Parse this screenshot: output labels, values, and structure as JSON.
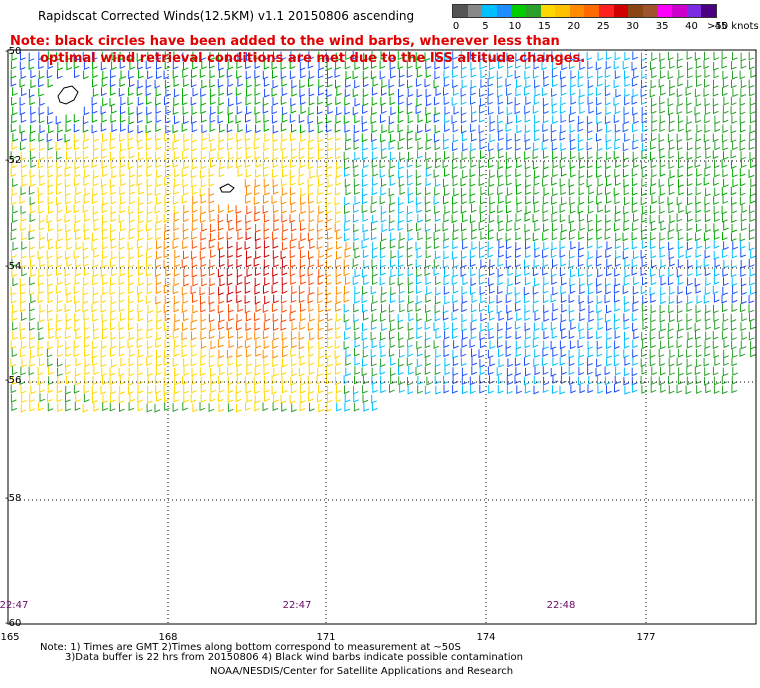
{
  "title": "Rapidscat Corrected Winds(12.5KM) v1.1 20150806 ascending",
  "note_line1": "Note: black circles have been added to the wind barbs, wherever less than",
  "note_line2": "optimal wind retrieval conditions are met due to the ISS altitude changes.",
  "legend": {
    "ticks": [
      "0",
      "5",
      "10",
      "15",
      "20",
      "25",
      "30",
      "35",
      "40",
      "45"
    ],
    "units": ">50 knots",
    "colors": [
      "#555555",
      "#888888",
      "#00bfff",
      "#1f8fff",
      "#00cc00",
      "#2aa02a",
      "#ffd700",
      "#ffc000",
      "#ff8c00",
      "#ff6a00",
      "#ff2020",
      "#d00000",
      "#8b4513",
      "#a0522d",
      "#ff00ff",
      "#cc00cc",
      "#7b2be2",
      "#4b0082"
    ]
  },
  "y_ticks": [
    "-50",
    "-52",
    "-54",
    "-56",
    "-58",
    "-60"
  ],
  "x_ticks": [
    "165",
    "168",
    "171",
    "174",
    "177"
  ],
  "time_labels": [
    "22:47",
    "22:47",
    "22:48"
  ],
  "footer": {
    "line1": "Note: 1) Times are GMT 2)Times along bottom correspond to measurement at ~50S",
    "line2": "3)Data buffer is 22 hrs from 20150806 4) Black wind barbs indicate possible contamination",
    "line3": "NOAA/NESDIS/Center for Satellite Applications and Research"
  }
}
